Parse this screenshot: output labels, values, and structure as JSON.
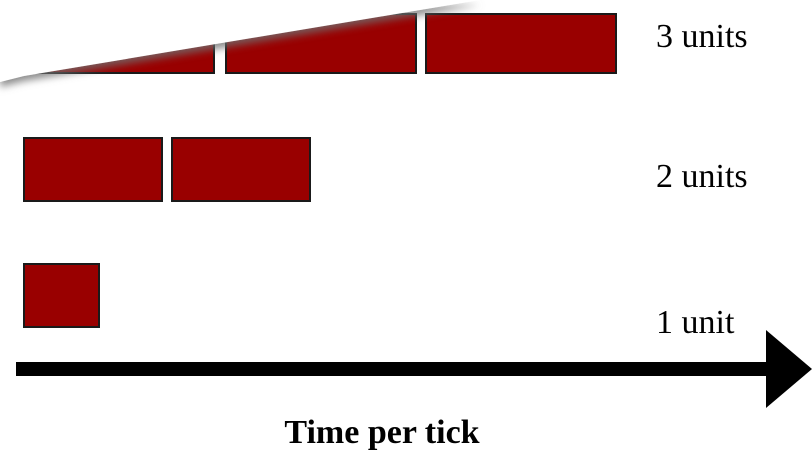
{
  "diagram": {
    "axis_title": "Time per tick",
    "rows": [
      {
        "label": "3 units",
        "units": 3
      },
      {
        "label": "2 units",
        "units": 2
      },
      {
        "label": "1 unit",
        "units": 1
      }
    ]
  },
  "colors": {
    "block_fill": "#990000",
    "block_stroke": "#1a1a1a",
    "arrow": "#000000",
    "shadow": "#7a7a7a",
    "overlay": "#ffffff"
  }
}
